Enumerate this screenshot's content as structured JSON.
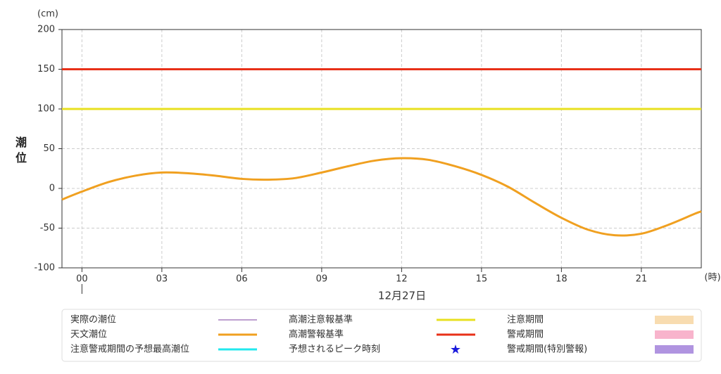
{
  "chart_data": {
    "type": "line",
    "y_unit": "(cm)",
    "x_unit": "(時)",
    "y_label": "潮位",
    "date_label": "12月27日",
    "xlim": [
      -0.75,
      23.25
    ],
    "xticks": [
      {
        "value": 0,
        "label": "00"
      },
      {
        "value": 3,
        "label": "03"
      },
      {
        "value": 6,
        "label": "06"
      },
      {
        "value": 9,
        "label": "09"
      },
      {
        "value": 12,
        "label": "12"
      },
      {
        "value": 15,
        "label": "15"
      },
      {
        "value": 18,
        "label": "18"
      },
      {
        "value": 21,
        "label": "21"
      }
    ],
    "ylim": [
      -100,
      200
    ],
    "yticks": [
      -100,
      -50,
      0,
      50,
      100,
      150,
      200
    ],
    "grid": true,
    "x": [
      -0.75,
      0,
      1,
      2,
      3,
      4,
      5,
      6,
      7,
      8,
      9,
      10,
      11,
      12,
      13,
      14,
      15,
      16,
      17,
      18,
      19,
      20,
      21,
      22,
      23,
      23.25
    ],
    "series": [
      {
        "name": "実際の潮位",
        "color": "#7b3fa0",
        "style": "thin"
      },
      {
        "name": "天文潮位",
        "color": "#f0a020",
        "style": "line",
        "values": [
          -14,
          -4,
          8,
          16,
          20,
          19,
          16,
          12,
          11,
          13,
          20,
          28,
          35,
          38,
          36,
          28,
          17,
          2,
          -18,
          -37,
          -52,
          -59,
          -57,
          -46,
          -32,
          -29
        ]
      },
      {
        "name": "注意警戒期間の予想最高潮位",
        "color": "#22e8ee",
        "style": "line"
      },
      {
        "name": "高潮注意報基準",
        "color": "#e8e020",
        "style": "line",
        "value": 100
      },
      {
        "name": "高潮警報基準",
        "color": "#e83018",
        "style": "line",
        "value": 150
      },
      {
        "name": "予想されるピーク時刻",
        "color": "#1a1adc",
        "style": "star"
      },
      {
        "name": "注意期間",
        "color": "#f8dcb0",
        "style": "area"
      },
      {
        "name": "警戒期間",
        "color": "#f8b4cc",
        "style": "area"
      },
      {
        "name": "警戒期間(特別警報)",
        "color": "#b094e0",
        "style": "area"
      }
    ]
  }
}
